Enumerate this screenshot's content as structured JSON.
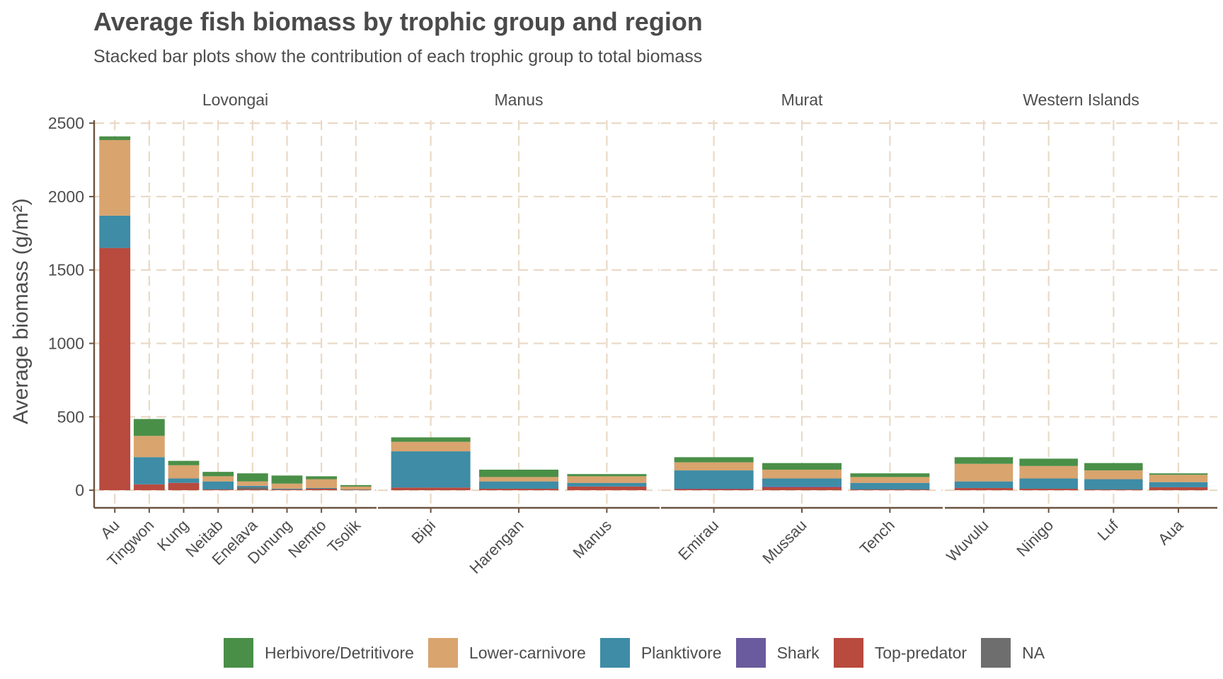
{
  "chart_data": {
    "type": "bar",
    "stacked": true,
    "title": "Average fish biomass by trophic group and region",
    "subtitle": "Stacked bar plots show the contribution of each trophic group to total biomass",
    "ylabel": "Average biomass (g/m²)",
    "ylim": [
      -120,
      2520
    ],
    "yticks": [
      0,
      500,
      1000,
      1500,
      2000,
      2500
    ],
    "grid": true,
    "legend_position": "bottom",
    "series": [
      {
        "name": "Herbivore/Detritivore",
        "color": "#4a8f48"
      },
      {
        "name": "Lower-carnivore",
        "color": "#d9a46e"
      },
      {
        "name": "Planktivore",
        "color": "#3e8ca6"
      },
      {
        "name": "Shark",
        "color": "#6a5a9e"
      },
      {
        "name": "Top-predator",
        "color": "#b84a3e"
      },
      {
        "name": "NA",
        "color": "#6e6e6e"
      }
    ],
    "panels": [
      {
        "region": "Lovongai",
        "sites": [
          {
            "site": "Au",
            "values": {
              "Top-predator": 1650,
              "Shark": 0,
              "Planktivore": 220,
              "Lower-carnivore": 515,
              "Herbivore/Detritivore": 25
            }
          },
          {
            "site": "Tingwon",
            "values": {
              "Top-predator": 40,
              "Shark": 0,
              "Planktivore": 185,
              "Lower-carnivore": 145,
              "Herbivore/Detritivore": 115
            }
          },
          {
            "site": "Kung",
            "values": {
              "Top-predator": 50,
              "Shark": 0,
              "Planktivore": 30,
              "Lower-carnivore": 90,
              "Herbivore/Detritivore": 30
            }
          },
          {
            "site": "Neitab",
            "values": {
              "Top-predator": 5,
              "Shark": 0,
              "Planktivore": 55,
              "Lower-carnivore": 35,
              "Herbivore/Detritivore": 30
            }
          },
          {
            "site": "Enelava",
            "values": {
              "Top-predator": 5,
              "Shark": 0,
              "NA": 15,
              "Planktivore": 10,
              "Lower-carnivore": 30,
              "Herbivore/Detritivore": 55
            }
          },
          {
            "site": "Dunung",
            "values": {
              "Top-predator": 5,
              "Shark": 0,
              "Planktivore": 5,
              "Lower-carnivore": 35,
              "Herbivore/Detritivore": 55
            }
          },
          {
            "site": "Nemto",
            "values": {
              "Top-predator": 10,
              "Shark": 0,
              "Planktivore": 5,
              "Lower-carnivore": 60,
              "Herbivore/Detritivore": 20
            }
          },
          {
            "site": "Tsolik",
            "values": {
              "Top-predator": 3,
              "Shark": 0,
              "Planktivore": 2,
              "Lower-carnivore": 20,
              "Herbivore/Detritivore": 10
            }
          }
        ]
      },
      {
        "region": "Manus",
        "sites": [
          {
            "site": "Bipi",
            "values": {
              "Top-predator": 18,
              "Shark": 0,
              "Planktivore": 247,
              "Lower-carnivore": 65,
              "Herbivore/Detritivore": 30
            }
          },
          {
            "site": "Harengan",
            "values": {
              "Top-predator": 10,
              "Shark": 0,
              "Planktivore": 50,
              "Lower-carnivore": 30,
              "Herbivore/Detritivore": 50
            }
          },
          {
            "site": "Manus",
            "values": {
              "Top-predator": 25,
              "Shark": 0,
              "Planktivore": 25,
              "Lower-carnivore": 45,
              "Herbivore/Detritivore": 15
            }
          }
        ]
      },
      {
        "region": "Murat",
        "sites": [
          {
            "site": "Emirau",
            "values": {
              "Top-predator": 8,
              "Shark": 2,
              "Planktivore": 125,
              "Lower-carnivore": 55,
              "Herbivore/Detritivore": 35
            }
          },
          {
            "site": "Mussau",
            "values": {
              "Top-predator": 20,
              "Shark": 5,
              "Planktivore": 55,
              "Lower-carnivore": 60,
              "Herbivore/Detritivore": 45
            }
          },
          {
            "site": "Tench",
            "values": {
              "Top-predator": 5,
              "Shark": 0,
              "Planktivore": 45,
              "Lower-carnivore": 40,
              "Herbivore/Detritivore": 25
            }
          }
        ]
      },
      {
        "region": "Western Islands",
        "sites": [
          {
            "site": "Wuvulu",
            "values": {
              "Top-predator": 15,
              "Shark": 0,
              "Planktivore": 45,
              "Lower-carnivore": 120,
              "Herbivore/Detritivore": 45
            }
          },
          {
            "site": "Ninigo",
            "values": {
              "Top-predator": 10,
              "Shark": 0,
              "Planktivore": 70,
              "Lower-carnivore": 85,
              "Herbivore/Detritivore": 50
            }
          },
          {
            "site": "Luf",
            "values": {
              "Top-predator": 5,
              "Shark": 0,
              "Planktivore": 70,
              "Lower-carnivore": 60,
              "Herbivore/Detritivore": 50
            }
          },
          {
            "site": "Aua",
            "values": {
              "Top-predator": 20,
              "Shark": 0,
              "Planktivore": 35,
              "Lower-carnivore": 50,
              "Herbivore/Detritivore": 10
            }
          }
        ]
      }
    ]
  }
}
